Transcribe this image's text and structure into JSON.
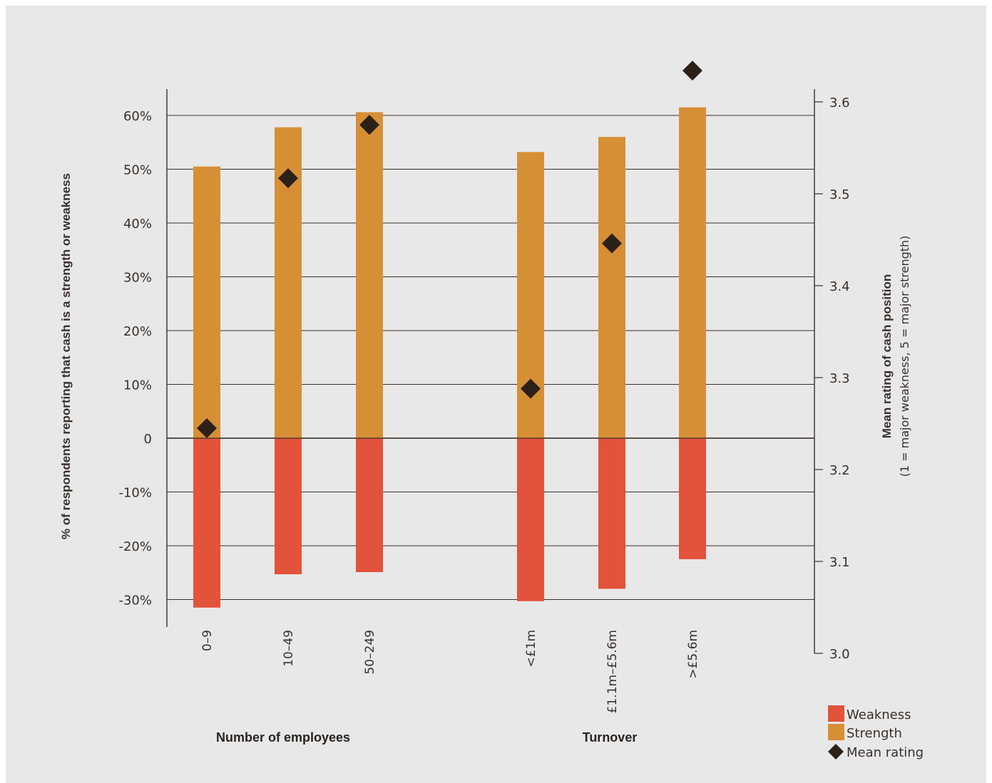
{
  "chart_data": {
    "type": "bar",
    "categories": [
      "0–9",
      "10–49",
      "50–249",
      "<£1m",
      "£1.1m–£5.6m",
      ">£5.6m"
    ],
    "groups": [
      {
        "title": "Number of employees",
        "categories": [
          "0–9",
          "10–49",
          "50–249"
        ]
      },
      {
        "title": "Turnover",
        "categories": [
          "<£1m",
          "£1.1m–£5.6m",
          ">£5.6m"
        ]
      }
    ],
    "series": [
      {
        "name": "Weakness",
        "type": "bar",
        "axis": "left",
        "color": "#e3523a",
        "values": [
          -31.5,
          -25.3,
          -24.9,
          -30.3,
          -28.0,
          -22.5
        ]
      },
      {
        "name": "Strength",
        "type": "bar",
        "axis": "left",
        "color": "#d78f35",
        "values": [
          50.5,
          57.8,
          60.6,
          53.2,
          56.0,
          61.5
        ]
      },
      {
        "name": "Mean rating",
        "type": "scatter",
        "marker": "diamond",
        "axis": "right",
        "color": "#2b2119",
        "values": [
          3.245,
          3.517,
          3.575,
          3.288,
          3.446,
          3.634
        ]
      }
    ],
    "left_axis": {
      "title": "% of respondents reporting that cash is a strength or weakness",
      "ticks": [
        60,
        50,
        40,
        30,
        20,
        10,
        0,
        -10,
        -20,
        -30
      ],
      "tick_labels": [
        "60%",
        "50%",
        "40%",
        "30%",
        "20%",
        "10%",
        "0",
        "-10%",
        "-20%",
        "-30%"
      ],
      "ylim": [
        -35,
        65
      ]
    },
    "right_axis": {
      "title": "Mean rating of cash position",
      "subtitle": "(1 = major weakness, 5 = major strength)",
      "ticks": [
        3.6,
        3.5,
        3.4,
        3.3,
        3.2,
        3.1,
        3.0
      ],
      "tick_labels": [
        "3.6",
        "3.5",
        "3.4",
        "3.3",
        "3.2",
        "3.1",
        "3.0"
      ],
      "ylim": [
        3.0,
        3.6
      ]
    },
    "legend": {
      "position": "bottom-right",
      "entries": [
        {
          "label": "Weakness",
          "symbol": "square",
          "color": "#e3523a"
        },
        {
          "label": "Strength",
          "symbol": "square",
          "color": "#d78f35"
        },
        {
          "label": "Mean rating",
          "symbol": "diamond",
          "color": "#2b2119"
        }
      ]
    },
    "grid": true
  }
}
